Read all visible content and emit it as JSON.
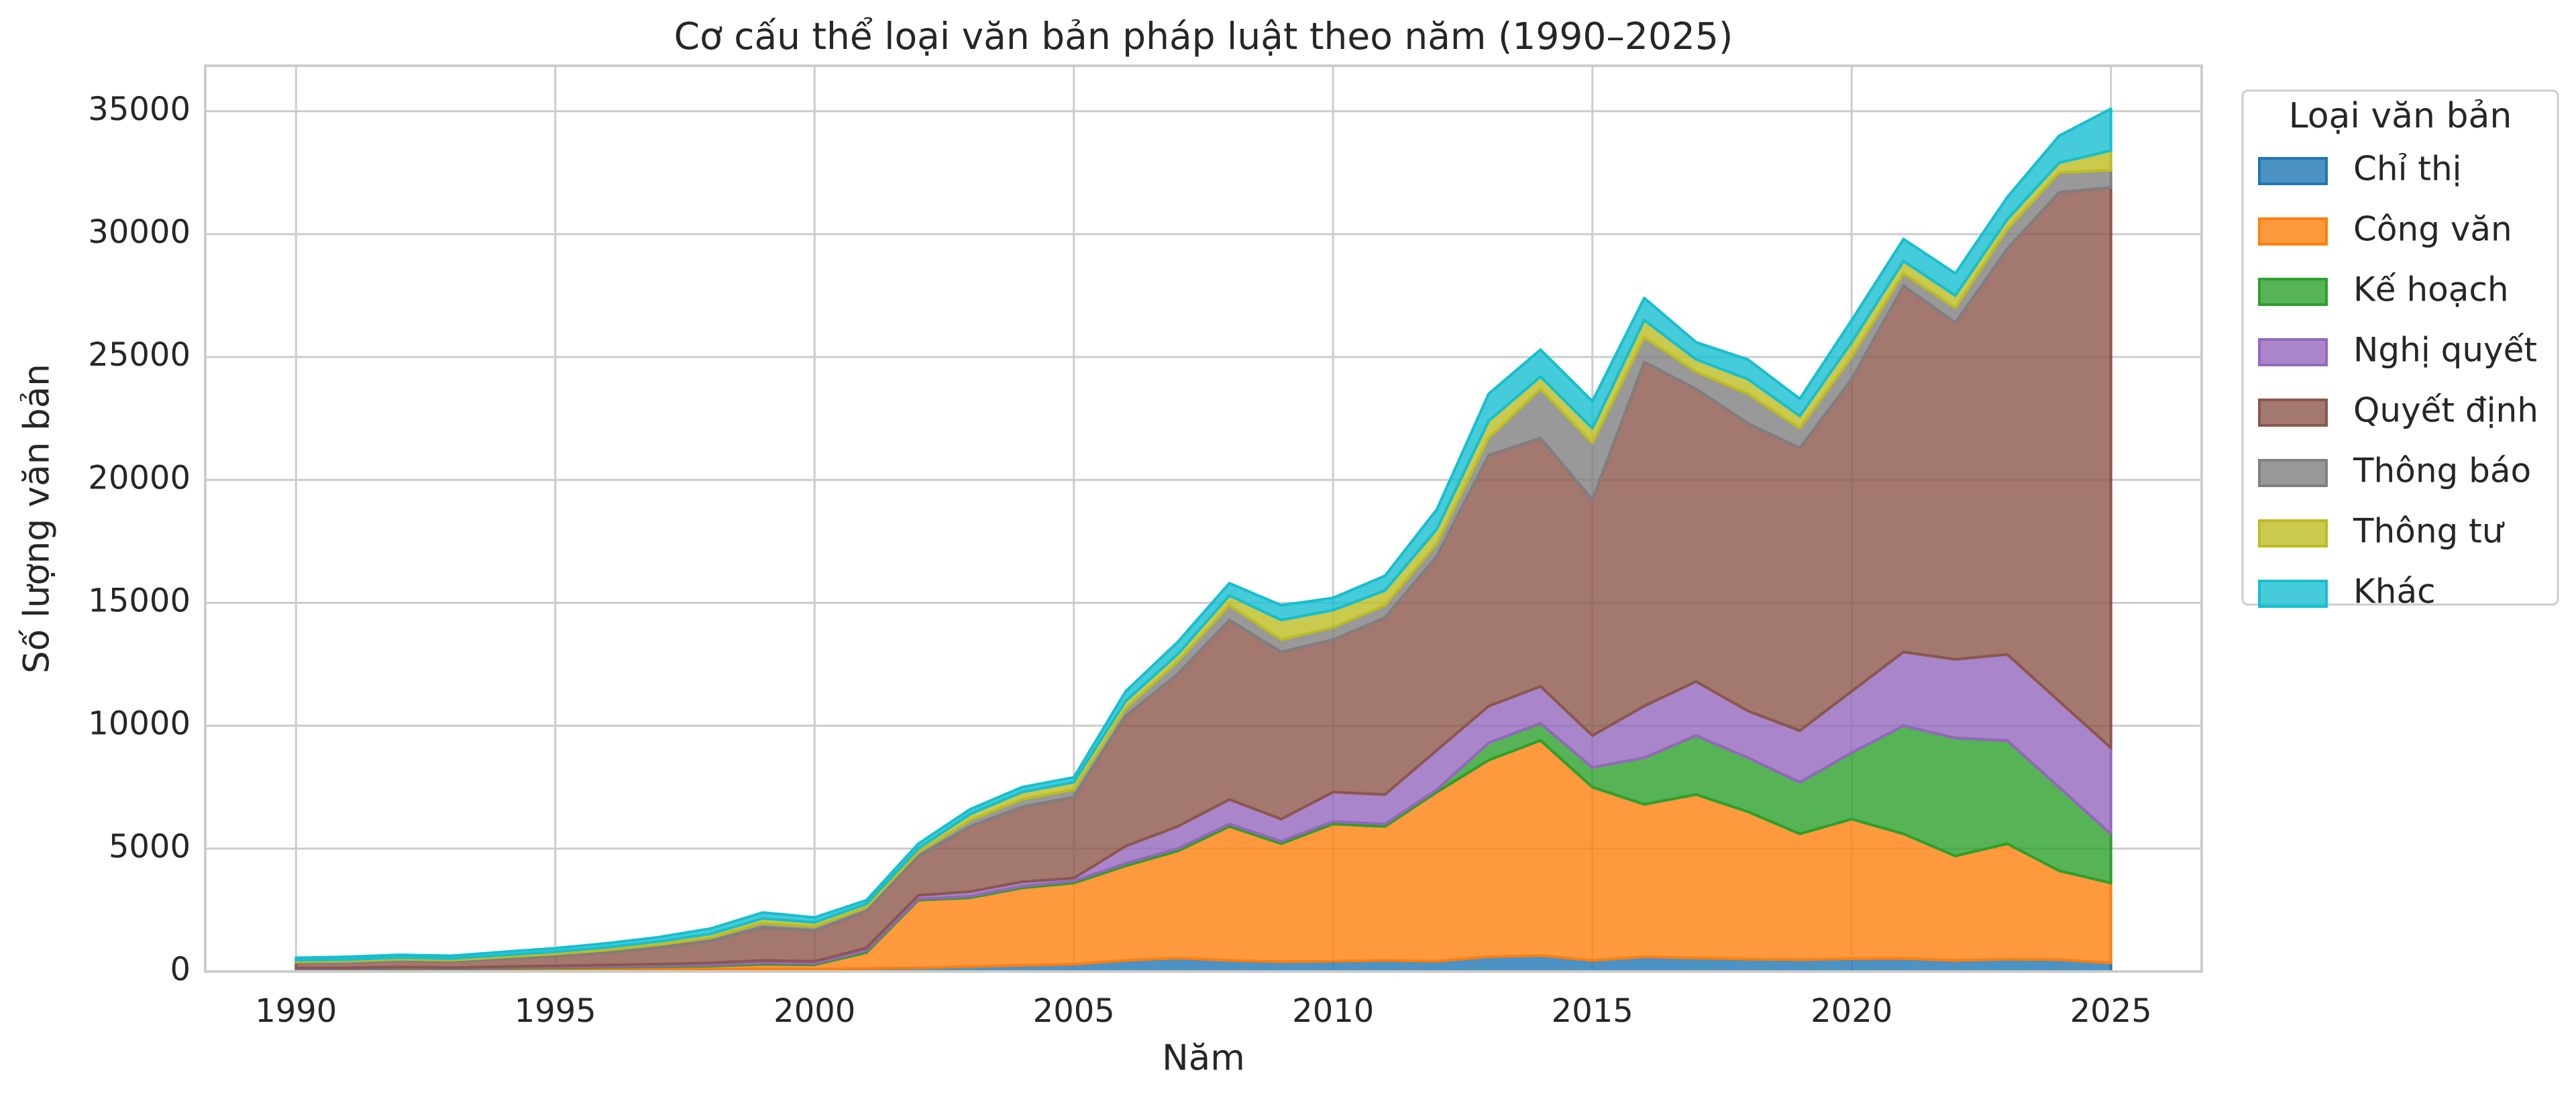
{
  "chart_data": {
    "type": "stackedarea",
    "title": "Cơ cấu thể loại văn bản pháp luật theo năm (1990–2025)",
    "x_label": "Năm",
    "y_label": "Số lượng văn bản",
    "legend_title": "Loại văn bản",
    "legend": "outside-upper-right",
    "grid": true,
    "x": [
      1990,
      1991,
      1992,
      1993,
      1994,
      1995,
      1996,
      1997,
      1998,
      1999,
      2000,
      2001,
      2002,
      2003,
      2004,
      2005,
      2006,
      2007,
      2008,
      2009,
      2010,
      2011,
      2012,
      2013,
      2014,
      2015,
      2016,
      2017,
      2018,
      2019,
      2020,
      2021,
      2022,
      2023,
      2024,
      2025
    ],
    "xlim": [
      1988.25,
      2026.75
    ],
    "xticks": [
      1990,
      1995,
      2000,
      2005,
      2010,
      2015,
      2020,
      2025
    ],
    "ylim": [
      0,
      36850
    ],
    "yticks": [
      0,
      5000,
      10000,
      15000,
      20000,
      25000,
      30000,
      35000
    ],
    "series": [
      {
        "name": "Chỉ thị",
        "color": "#1f77b4",
        "values": [
          40,
          40,
          50,
          45,
          50,
          60,
          70,
          80,
          90,
          110,
          100,
          120,
          150,
          200,
          250,
          300,
          450,
          550,
          450,
          400,
          420,
          450,
          420,
          600,
          650,
          450,
          600,
          550,
          500,
          480,
          520,
          530,
          450,
          500,
          480,
          350
        ]
      },
      {
        "name": "Công văn",
        "color": "#ff7f0e",
        "values": [
          60,
          60,
          70,
          65,
          80,
          90,
          100,
          110,
          130,
          180,
          170,
          650,
          2750,
          2800,
          3150,
          3300,
          3850,
          4350,
          5450,
          4800,
          5580,
          5450,
          6880,
          8000,
          8750,
          7050,
          6200,
          6650,
          6000,
          5120,
          5680,
          5070,
          4250,
          4700,
          3620,
          3250
        ]
      },
      {
        "name": "Kế hoạch",
        "color": "#2ca02c",
        "values": [
          20,
          20,
          25,
          20,
          25,
          30,
          35,
          40,
          50,
          60,
          55,
          80,
          50,
          60,
          70,
          80,
          100,
          100,
          100,
          100,
          100,
          100,
          100,
          700,
          700,
          800,
          1900,
          2400,
          2200,
          2100,
          2700,
          4400,
          4800,
          4200,
          3400,
          2000
        ]
      },
      {
        "name": "Nghị quyết",
        "color": "#9467bd",
        "values": [
          30,
          30,
          35,
          30,
          40,
          50,
          60,
          70,
          80,
          100,
          90,
          110,
          150,
          190,
          180,
          120,
          700,
          900,
          1000,
          900,
          1200,
          1200,
          1600,
          1500,
          1500,
          1300,
          2100,
          2200,
          1900,
          2100,
          2500,
          3000,
          3200,
          3500,
          3500,
          3500
        ]
      },
      {
        "name": "Quyết định",
        "color": "#8c564b",
        "values": [
          200,
          220,
          260,
          250,
          330,
          410,
          520,
          680,
          900,
          1350,
          1250,
          1500,
          1600,
          2650,
          3050,
          3300,
          5300,
          6200,
          7300,
          6800,
          6200,
          7200,
          7900,
          10200,
          10100,
          9600,
          14000,
          11900,
          11700,
          11500,
          12700,
          14900,
          13700,
          16500,
          20700,
          22800
        ]
      },
      {
        "name": "Thông báo",
        "color": "#7f7f7f",
        "values": [
          50,
          50,
          60,
          55,
          65,
          75,
          90,
          110,
          130,
          170,
          160,
          150,
          150,
          250,
          300,
          300,
          300,
          500,
          600,
          500,
          500,
          500,
          500,
          700,
          2000,
          2300,
          1000,
          700,
          1200,
          800,
          900,
          500,
          600,
          800,
          800,
          700
        ]
      },
      {
        "name": "Thông tư",
        "color": "#bcbd22",
        "values": [
          60,
          65,
          70,
          65,
          80,
          90,
          110,
          130,
          150,
          190,
          170,
          140,
          150,
          250,
          300,
          300,
          300,
          300,
          400,
          800,
          700,
          600,
          600,
          700,
          500,
          600,
          700,
          500,
          600,
          500,
          600,
          500,
          500,
          400,
          400,
          800
        ]
      },
      {
        "name": "Khác",
        "color": "#17becf",
        "values": [
          100,
          115,
          110,
          110,
          130,
          145,
          165,
          180,
          220,
          240,
          205,
          150,
          200,
          200,
          200,
          200,
          400,
          500,
          500,
          600,
          500,
          600,
          800,
          1100,
          1100,
          1100,
          900,
          700,
          800,
          700,
          900,
          900,
          900,
          900,
          1100,
          1700
        ]
      }
    ]
  }
}
